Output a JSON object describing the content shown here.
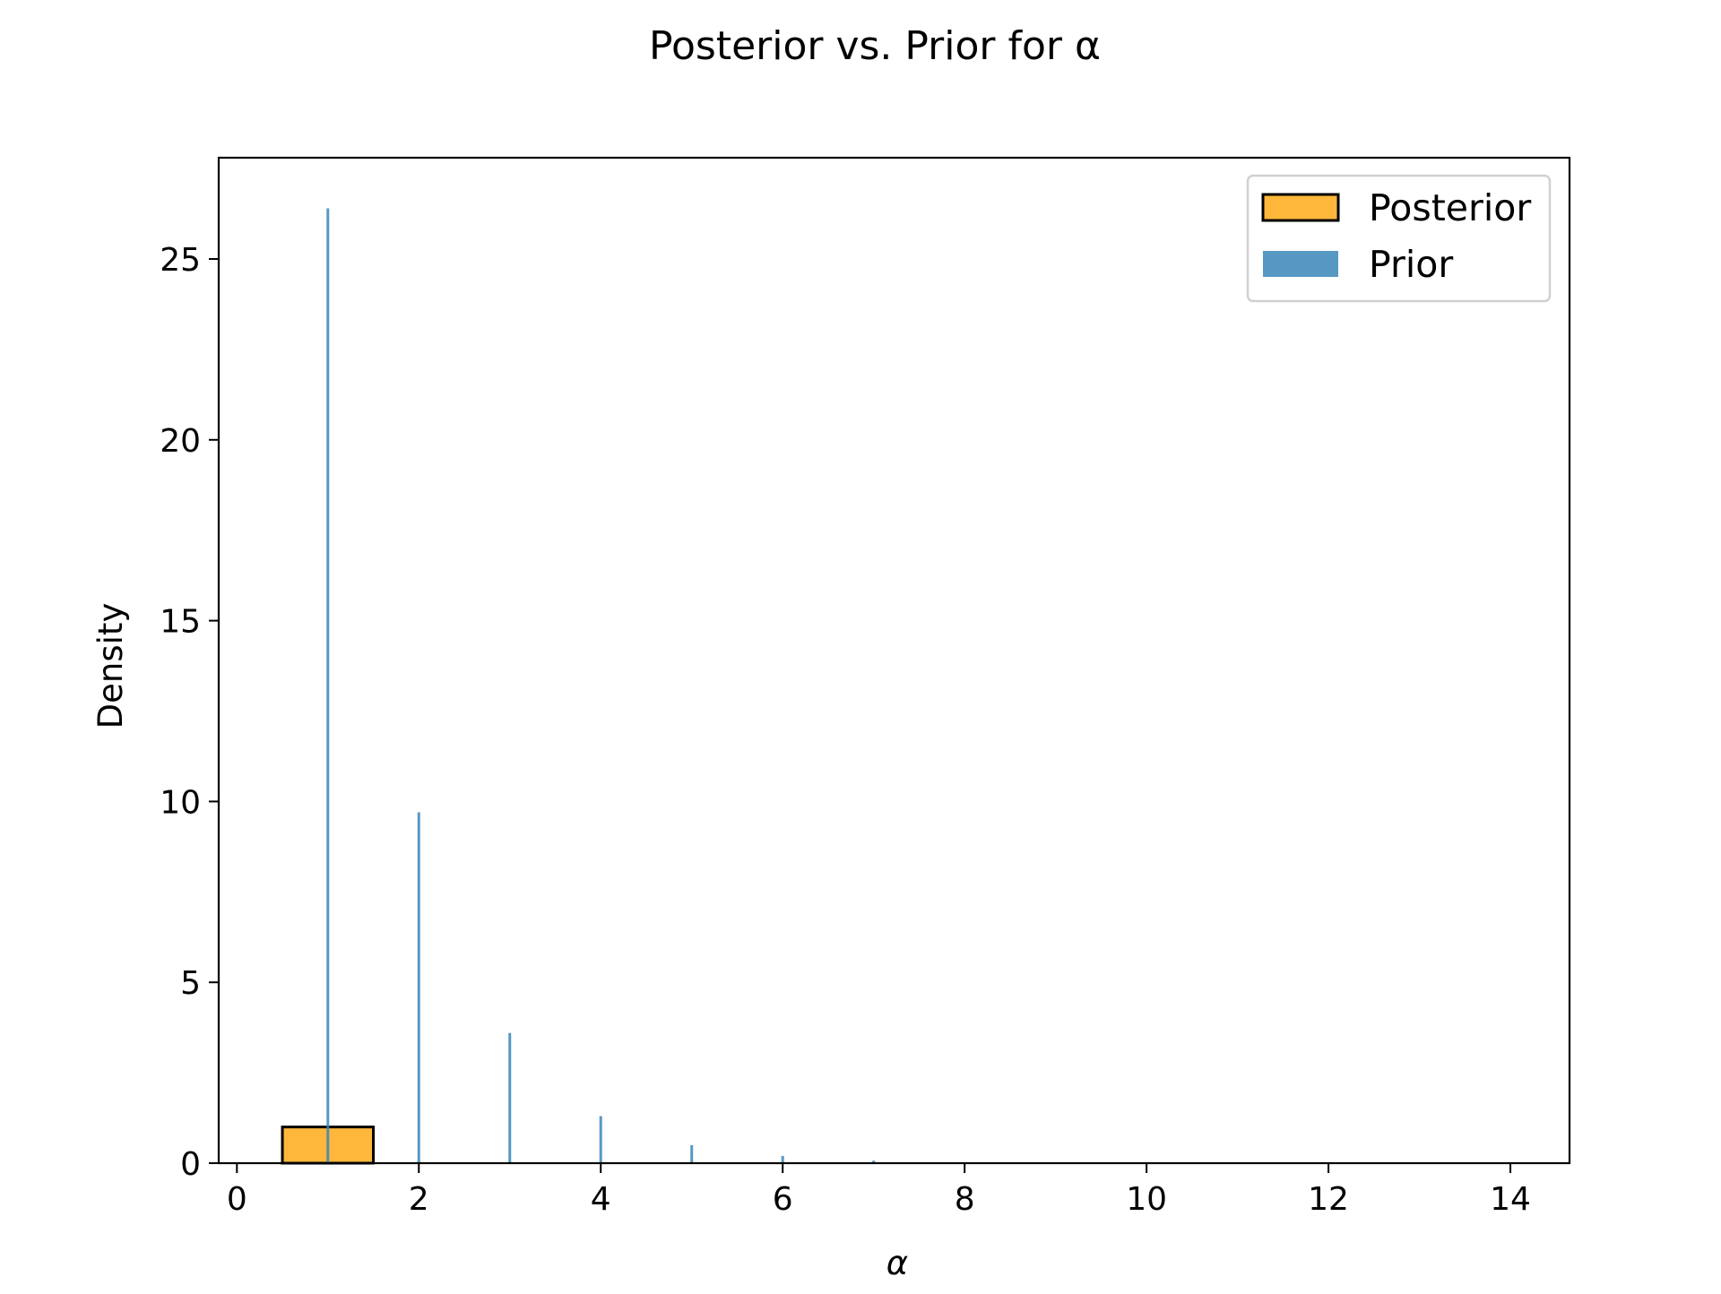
{
  "chart_data": {
    "type": "bar",
    "title": "Posterior vs. Prior for α",
    "xlabel": "α",
    "ylabel": "Density",
    "xlim": [
      -0.2,
      14.65
    ],
    "ylim": [
      0,
      27.8
    ],
    "xticks": [
      0,
      2,
      4,
      6,
      8,
      10,
      12,
      14
    ],
    "xtick_labels": [
      "0",
      "2",
      "4",
      "6",
      "8",
      "10",
      "12",
      "14"
    ],
    "yticks": [
      0,
      5,
      10,
      15,
      20,
      25
    ],
    "ytick_labels": [
      "0",
      "5",
      "10",
      "15",
      "20",
      "25"
    ],
    "grid": false,
    "legend_position": "top-right",
    "series": [
      {
        "name": "Posterior",
        "color": "#ffb330",
        "edgecolor": "#000000",
        "bins": [
          {
            "x0": 0.5,
            "x1": 1.5,
            "density": 1.0
          }
        ]
      },
      {
        "name": "Prior",
        "color": "#3a86b8",
        "bins": [
          {
            "x": 1,
            "density": 26.4
          },
          {
            "x": 2,
            "density": 9.7
          },
          {
            "x": 3,
            "density": 3.6
          },
          {
            "x": 4,
            "density": 1.3
          },
          {
            "x": 5,
            "density": 0.5
          },
          {
            "x": 6,
            "density": 0.2
          },
          {
            "x": 7,
            "density": 0.07
          }
        ]
      }
    ]
  }
}
